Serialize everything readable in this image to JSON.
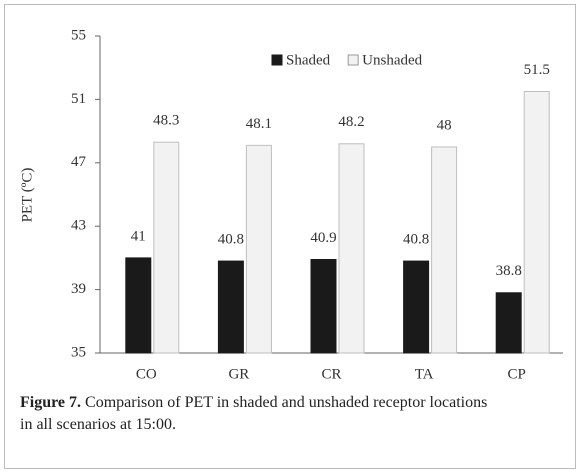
{
  "chart_data": {
    "type": "bar",
    "categories": [
      "CO",
      "GR",
      "CR",
      "TA",
      "CP"
    ],
    "series": [
      {
        "name": "Shaded",
        "color": "#1a1a1a",
        "values": [
          41,
          40.8,
          40.9,
          40.8,
          38.8
        ]
      },
      {
        "name": "Unshaded",
        "color": "#f2f2f2",
        "values": [
          48.3,
          48.1,
          48.2,
          48,
          51.5
        ]
      }
    ],
    "ylabel": "PET (ºC)",
    "ylim": [
      35,
      55
    ],
    "yticks": [
      35,
      39,
      43,
      47,
      51,
      55
    ],
    "grid": false,
    "legend": "top",
    "caption": {
      "label": "Figure 7.",
      "text": "Comparison of PET in shaded and unshaded receptor locations in all scenarios at 15:00."
    }
  }
}
